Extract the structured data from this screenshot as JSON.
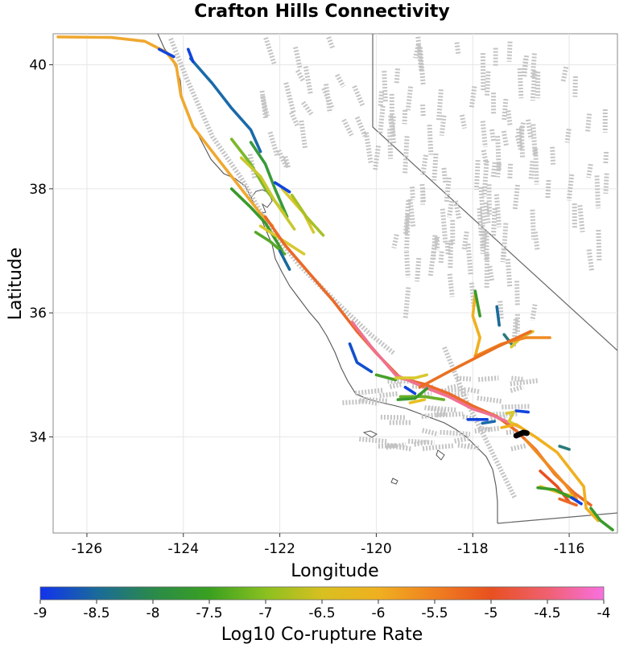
{
  "chart_data": {
    "type": "map",
    "title": "Crafton Hills Connectivity",
    "xlabel": "Longitude",
    "ylabel": "Latitude",
    "xlim": [
      -126.7,
      -115.0
    ],
    "ylim": [
      32.45,
      40.5
    ],
    "x_ticks": [
      -126,
      -124,
      -122,
      -120,
      -118,
      -116
    ],
    "y_ticks": [
      34,
      36,
      38,
      40
    ],
    "x_tick_labels": [
      "-126",
      "-124",
      "-122",
      "-120",
      "-118",
      "-116"
    ],
    "y_tick_labels": [
      "34",
      "36",
      "38",
      "40"
    ],
    "grid": true,
    "colorbar": {
      "label": "Log10 Co-rupture Rate",
      "range": [
        -9,
        -4
      ],
      "ticks": [
        -9,
        -8.5,
        -8,
        -7.5,
        -7,
        -6.5,
        -6,
        -5.5,
        -5,
        -4.5,
        -4
      ],
      "tick_labels": [
        "-9",
        "-8.5",
        "-8",
        "-7.5",
        "-7",
        "-6.5",
        "-6",
        "-5.5",
        "-5",
        "-4.5",
        "-4"
      ],
      "colors": [
        "#1133ee",
        "#1a6a9a",
        "#2a8a4a",
        "#3aa020",
        "#8ac020",
        "#d8c020",
        "#f0b020",
        "#f08020",
        "#e85020",
        "#f06070",
        "#f870e0"
      ]
    },
    "source_fault": {
      "name": "Crafton Hills",
      "color": "#000000",
      "points": [
        [
          -117.1,
          34.02
        ],
        [
          -116.95,
          34.07
        ],
        [
          -116.88,
          34.06
        ]
      ]
    },
    "series": [
      {
        "rate": -6.2,
        "color": "#f0a830",
        "points": [
          [
            -126.6,
            40.45
          ],
          [
            -125.5,
            40.44
          ],
          [
            -124.8,
            40.38
          ],
          [
            -124.35,
            40.2
          ],
          [
            -124.15,
            40.0
          ],
          [
            -124.05,
            39.5
          ],
          [
            -123.8,
            39.0
          ],
          [
            -123.3,
            38.5
          ],
          [
            -122.8,
            38.0
          ],
          [
            -122.4,
            37.6
          ],
          [
            -122.15,
            37.4
          ]
        ]
      },
      {
        "rate": -8.6,
        "color": "#1a6aaa",
        "points": [
          [
            -123.85,
            40.1
          ],
          [
            -123.4,
            39.7
          ],
          [
            -123.0,
            39.3
          ],
          [
            -122.6,
            38.95
          ],
          [
            -122.4,
            38.6
          ]
        ]
      },
      {
        "rate": -8.9,
        "color": "#1144dd",
        "points": [
          [
            -124.5,
            40.25
          ],
          [
            -124.2,
            40.13
          ]
        ]
      },
      {
        "rate": -8.9,
        "color": "#1144dd",
        "points": [
          [
            -123.9,
            40.25
          ],
          [
            -123.8,
            40.05
          ]
        ]
      },
      {
        "rate": -7.7,
        "color": "#3a9a3a",
        "points": [
          [
            -122.6,
            38.75
          ],
          [
            -122.3,
            38.4
          ],
          [
            -122.1,
            38.0
          ],
          [
            -121.85,
            37.55
          ]
        ]
      },
      {
        "rate": -7.2,
        "color": "#7ab828",
        "points": [
          [
            -123.0,
            38.8
          ],
          [
            -122.6,
            38.4
          ],
          [
            -122.3,
            38.0
          ],
          [
            -121.9,
            37.6
          ]
        ]
      },
      {
        "rate": -6.8,
        "color": "#c8c830",
        "points": [
          [
            -122.8,
            38.5
          ],
          [
            -122.4,
            38.2
          ],
          [
            -122.1,
            37.8
          ],
          [
            -121.7,
            37.35
          ]
        ]
      },
      {
        "rate": -6.6,
        "color": "#d8c830",
        "points": [
          [
            -121.95,
            38.0
          ],
          [
            -121.5,
            37.6
          ],
          [
            -121.3,
            37.3
          ]
        ]
      },
      {
        "rate": -7.0,
        "color": "#a8c028",
        "points": [
          [
            -121.75,
            37.9
          ],
          [
            -121.45,
            37.55
          ],
          [
            -121.1,
            37.25
          ]
        ]
      },
      {
        "rate": -7.6,
        "color": "#3a9a2a",
        "points": [
          [
            -123.0,
            38.0
          ],
          [
            -122.6,
            37.7
          ],
          [
            -122.3,
            37.45
          ],
          [
            -121.95,
            37.0
          ]
        ]
      },
      {
        "rate": -7.4,
        "color": "#58a82a",
        "points": [
          [
            -122.5,
            37.3
          ],
          [
            -122.2,
            37.15
          ],
          [
            -121.9,
            36.95
          ]
        ]
      },
      {
        "rate": -8.5,
        "color": "#1a6a9a",
        "points": [
          [
            -122.0,
            37.0
          ],
          [
            -121.8,
            36.7
          ]
        ]
      },
      {
        "rate": -8.9,
        "color": "#1144dd",
        "points": [
          [
            -122.1,
            38.1
          ],
          [
            -121.8,
            37.95
          ]
        ]
      },
      {
        "rate": -6.6,
        "color": "#d8c830",
        "points": [
          [
            -122.4,
            37.4
          ],
          [
            -121.9,
            37.15
          ],
          [
            -121.5,
            36.95
          ]
        ]
      },
      {
        "rate": -5.2,
        "color": "#ea6a28",
        "points": [
          [
            -122.3,
            37.55
          ],
          [
            -121.9,
            37.1
          ],
          [
            -121.4,
            36.65
          ],
          [
            -120.9,
            36.2
          ],
          [
            -120.4,
            35.7
          ],
          [
            -120.0,
            35.35
          ],
          [
            -119.5,
            34.95
          ],
          [
            -119.0,
            34.85
          ],
          [
            -118.5,
            34.7
          ],
          [
            -118.0,
            34.5
          ],
          [
            -117.5,
            34.33
          ],
          [
            -117.1,
            34.1
          ],
          [
            -116.7,
            33.8
          ],
          [
            -116.3,
            33.4
          ],
          [
            -115.9,
            33.1
          ],
          [
            -115.55,
            32.9
          ]
        ]
      },
      {
        "rate": -4.4,
        "color": "#f07090",
        "points": [
          [
            -120.5,
            35.85
          ],
          [
            -120.1,
            35.45
          ],
          [
            -119.6,
            35.0
          ],
          [
            -119.0,
            34.8
          ],
          [
            -118.5,
            34.65
          ],
          [
            -118.0,
            34.45
          ],
          [
            -117.6,
            34.35
          ],
          [
            -117.3,
            34.25
          ],
          [
            -117.0,
            34.15
          ]
        ]
      },
      {
        "rate": -6.2,
        "color": "#f0b020",
        "points": [
          [
            -117.95,
            36.3
          ],
          [
            -118.0,
            35.95
          ],
          [
            -117.85,
            35.6
          ],
          [
            -117.95,
            35.3
          ]
        ]
      },
      {
        "rate": -7.6,
        "color": "#3a9a2a",
        "points": [
          [
            -117.95,
            36.35
          ],
          [
            -117.85,
            35.95
          ]
        ]
      },
      {
        "rate": -8.5,
        "color": "#1a6a9a",
        "points": [
          [
            -117.5,
            36.1
          ],
          [
            -117.45,
            35.8
          ]
        ]
      },
      {
        "rate": -8.5,
        "color": "#2a7a7a",
        "points": [
          [
            -117.35,
            35.65
          ],
          [
            -117.2,
            35.5
          ]
        ]
      },
      {
        "rate": -6.6,
        "color": "#d8c830",
        "points": [
          [
            -116.75,
            35.7
          ],
          [
            -117.0,
            35.6
          ],
          [
            -117.2,
            35.45
          ]
        ]
      },
      {
        "rate": -5.8,
        "color": "#f08a20",
        "points": [
          [
            -117.95,
            35.3
          ],
          [
            -117.4,
            35.5
          ],
          [
            -116.9,
            35.6
          ],
          [
            -116.4,
            35.6
          ]
        ]
      },
      {
        "rate": -5.4,
        "color": "#ea7020",
        "points": [
          [
            -119.1,
            34.8
          ],
          [
            -118.5,
            35.05
          ],
          [
            -118.0,
            35.25
          ],
          [
            -117.5,
            35.45
          ],
          [
            -116.8,
            35.7
          ]
        ]
      },
      {
        "rate": -8.8,
        "color": "#1150cc",
        "points": [
          [
            -120.55,
            35.5
          ],
          [
            -120.4,
            35.2
          ],
          [
            -120.1,
            35.05
          ]
        ]
      },
      {
        "rate": -7.5,
        "color": "#48a02a",
        "points": [
          [
            -120.0,
            35.0
          ],
          [
            -119.6,
            34.92
          ]
        ]
      },
      {
        "rate": -6.6,
        "color": "#d8c830",
        "points": [
          [
            -119.6,
            34.95
          ],
          [
            -119.2,
            34.95
          ],
          [
            -118.95,
            35.0
          ]
        ]
      },
      {
        "rate": -7.3,
        "color": "#68b028",
        "points": [
          [
            -119.5,
            34.65
          ],
          [
            -119.0,
            34.65
          ],
          [
            -118.6,
            34.6
          ]
        ]
      },
      {
        "rate": -7.6,
        "color": "#3a9a2a",
        "points": [
          [
            -119.55,
            34.6
          ],
          [
            -119.2,
            34.62
          ],
          [
            -118.95,
            34.78
          ]
        ]
      },
      {
        "rate": -8.9,
        "color": "#1144dd",
        "points": [
          [
            -119.4,
            34.8
          ],
          [
            -119.2,
            34.7
          ]
        ]
      },
      {
        "rate": -6.4,
        "color": "#e8c020",
        "points": [
          [
            -119.3,
            34.55
          ],
          [
            -119.0,
            34.6
          ]
        ]
      },
      {
        "rate": -8.9,
        "color": "#1144dd",
        "points": [
          [
            -118.1,
            34.28
          ],
          [
            -117.7,
            34.28
          ]
        ]
      },
      {
        "rate": -8.3,
        "color": "#1a6aaa",
        "points": [
          [
            -117.8,
            34.22
          ],
          [
            -117.55,
            34.25
          ]
        ]
      },
      {
        "rate": -8.9,
        "color": "#1144dd",
        "points": [
          [
            -117.1,
            34.42
          ],
          [
            -116.85,
            34.4
          ]
        ]
      },
      {
        "rate": -6.6,
        "color": "#d8c830",
        "points": [
          [
            -117.3,
            34.38
          ],
          [
            -117.15,
            34.4
          ],
          [
            -117.25,
            34.25
          ],
          [
            -117.0,
            34.15
          ]
        ]
      },
      {
        "rate": -6.2,
        "color": "#f0b020",
        "points": [
          [
            -117.4,
            34.15
          ],
          [
            -117.1,
            34.2
          ],
          [
            -116.7,
            34.0
          ],
          [
            -116.25,
            33.75
          ],
          [
            -115.95,
            33.45
          ],
          [
            -115.7,
            33.2
          ],
          [
            -115.65,
            32.85
          ],
          [
            -115.4,
            32.65
          ]
        ]
      },
      {
        "rate": -5.8,
        "color": "#f08a20",
        "points": [
          [
            -116.9,
            33.95
          ],
          [
            -116.5,
            33.6
          ],
          [
            -116.1,
            33.25
          ],
          [
            -115.85,
            33.0
          ]
        ]
      },
      {
        "rate": -5.0,
        "color": "#e85020",
        "points": [
          [
            -116.6,
            33.45
          ],
          [
            -116.25,
            33.2
          ],
          [
            -116.0,
            32.95
          ]
        ]
      },
      {
        "rate": -6.4,
        "color": "#e8c020",
        "points": [
          [
            -116.6,
            33.2
          ],
          [
            -116.2,
            33.1
          ],
          [
            -115.95,
            33.05
          ]
        ]
      },
      {
        "rate": -7.6,
        "color": "#3a9a2a",
        "points": [
          [
            -116.65,
            33.18
          ],
          [
            -116.3,
            33.15
          ],
          [
            -115.9,
            33.0
          ]
        ]
      },
      {
        "rate": -8.9,
        "color": "#1144dd",
        "points": [
          [
            -115.95,
            33.02
          ],
          [
            -115.75,
            32.92
          ]
        ]
      },
      {
        "rate": -7.6,
        "color": "#3a9a2a",
        "points": [
          [
            -115.55,
            32.85
          ],
          [
            -115.35,
            32.65
          ],
          [
            -115.1,
            32.5
          ]
        ]
      },
      {
        "rate": -5.2,
        "color": "#ea6a28",
        "points": [
          [
            -116.2,
            33.0
          ],
          [
            -115.85,
            32.9
          ]
        ]
      },
      {
        "rate": -8.5,
        "color": "#2a7a7a",
        "points": [
          [
            -116.2,
            33.85
          ],
          [
            -116.0,
            33.8
          ]
        ]
      }
    ]
  }
}
